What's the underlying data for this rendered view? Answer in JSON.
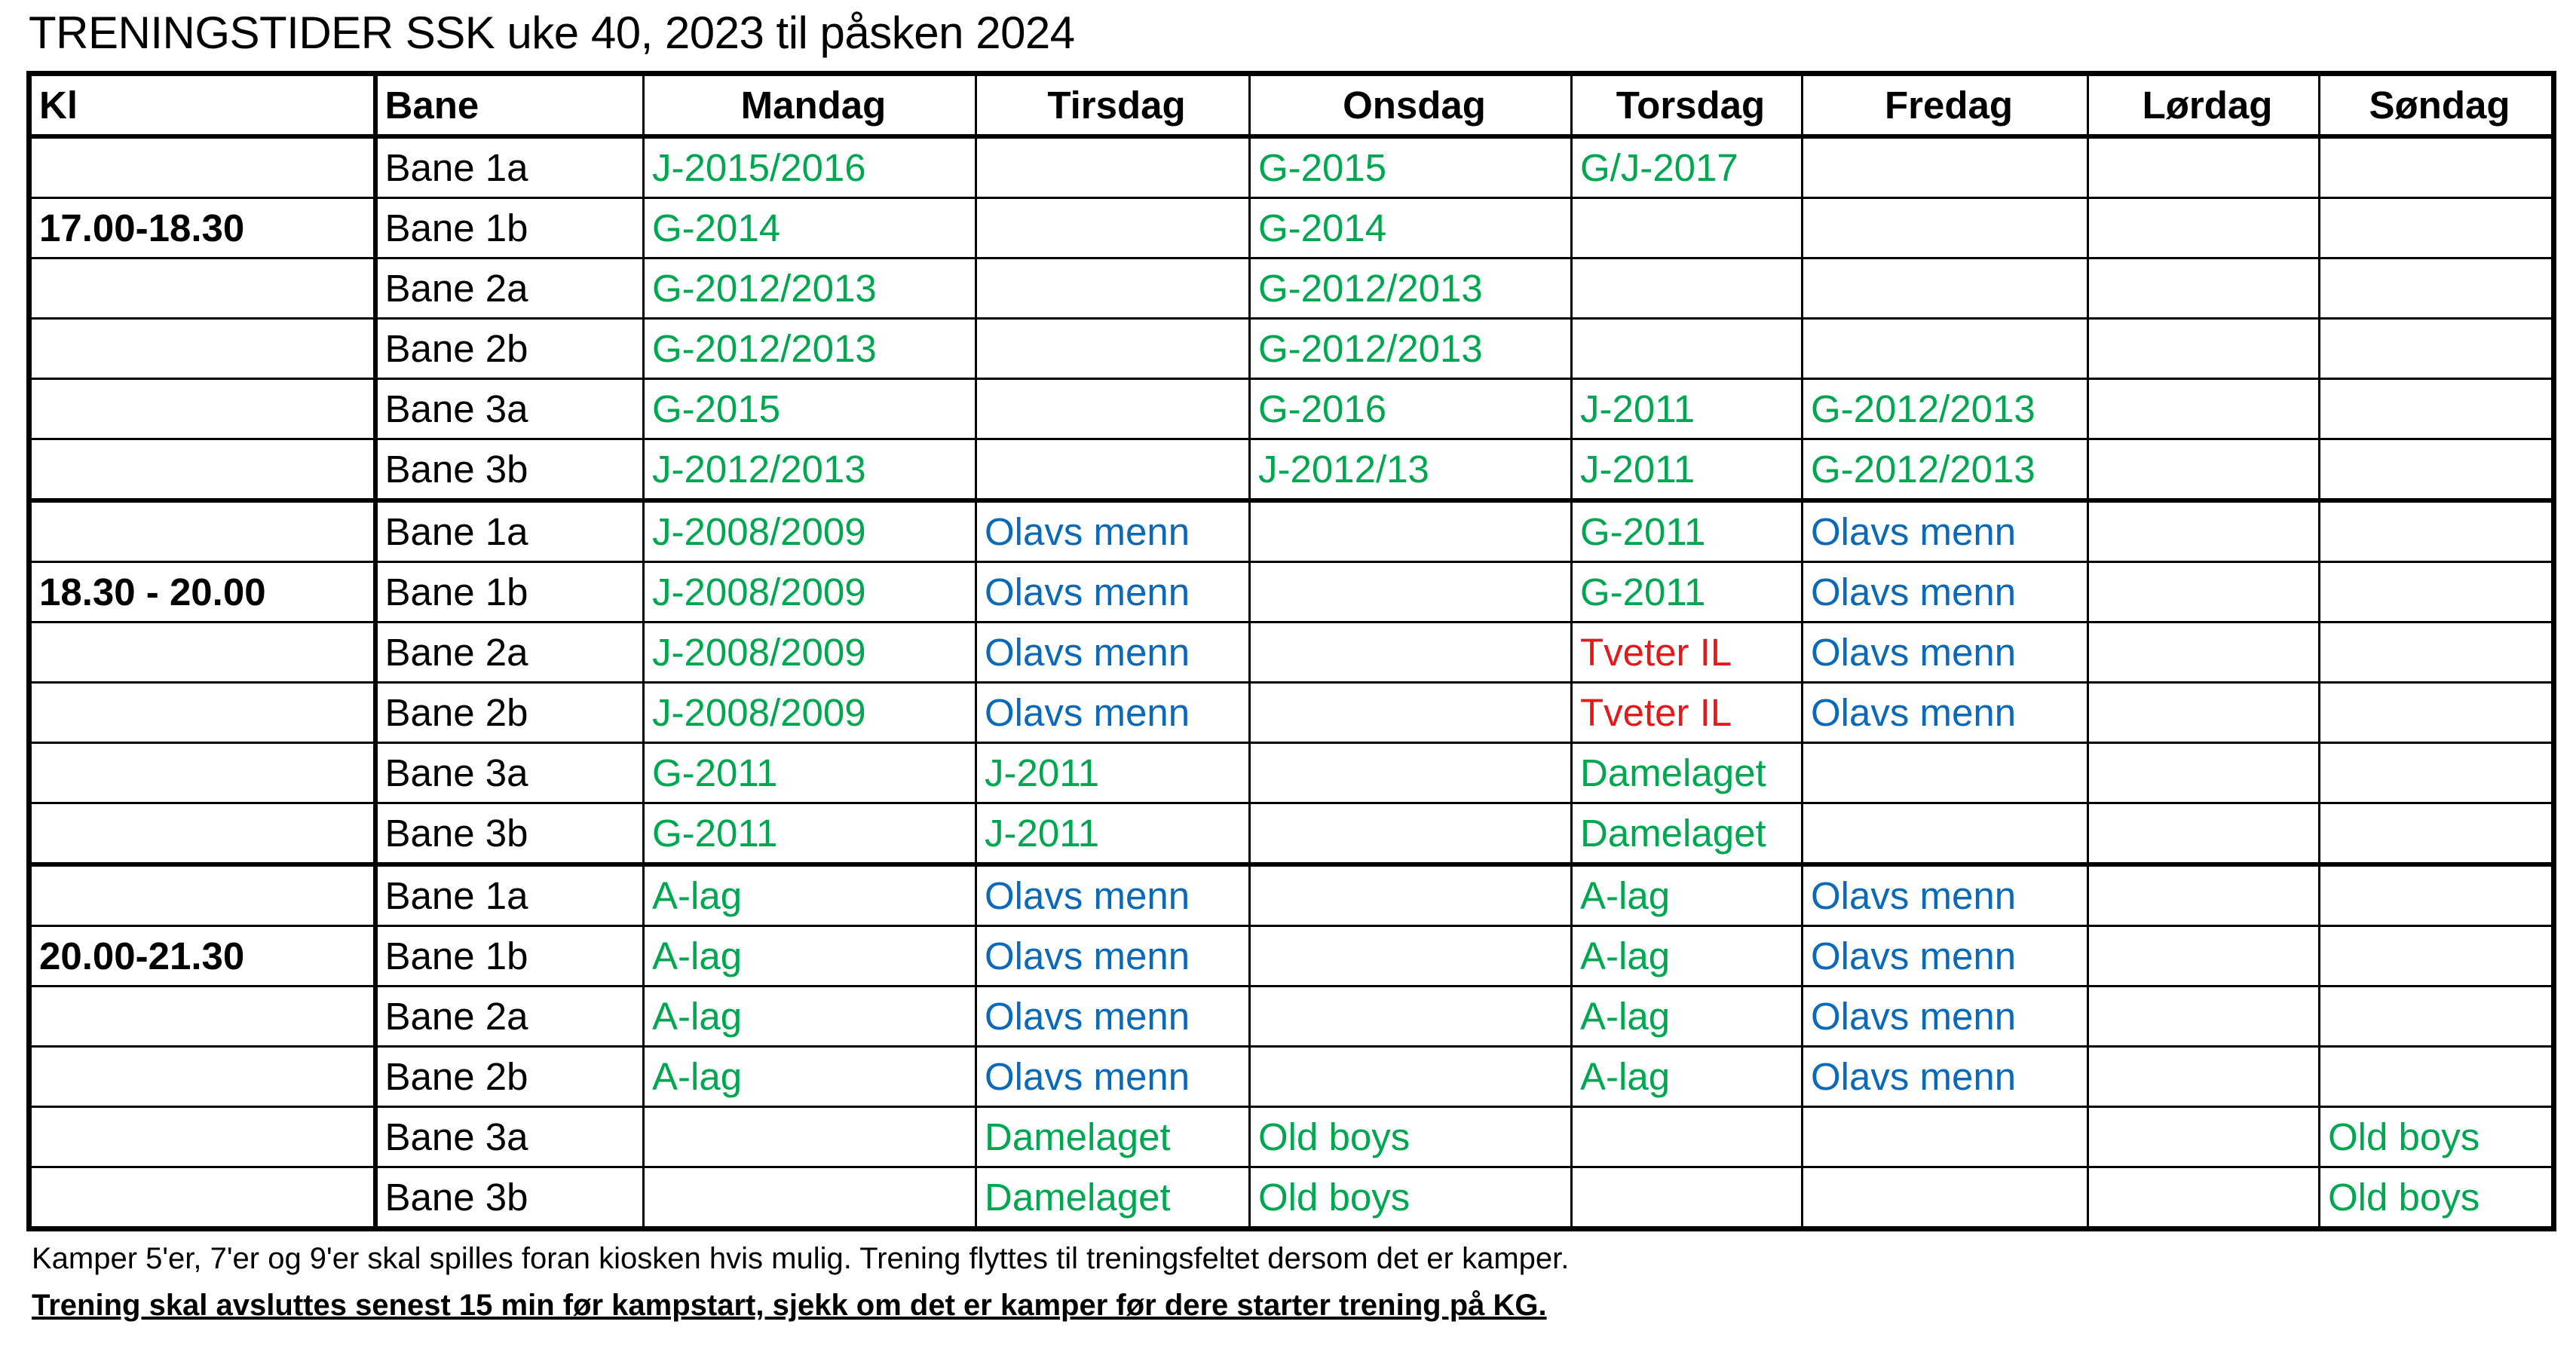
{
  "title": "TRENINGSTIDER SSK uke 40, 2023 til påsken 2024",
  "headers": [
    "Kl",
    "Bane",
    "Mandag",
    "Tirsdag",
    "Onsdag",
    "Torsdag",
    "Fredag",
    "Lørdag",
    "Søndag"
  ],
  "colors": {
    "green": "#00a650",
    "blue": "#0b6ab7",
    "red": "#e41a1a"
  },
  "blocks": [
    {
      "time": "17.00-18.30",
      "rows": [
        {
          "bane": "Bane 1a",
          "cells": [
            {
              "t": "J-2015/2016",
              "c": "green"
            },
            {
              "t": "",
              "c": ""
            },
            {
              "t": "G-2015",
              "c": "green"
            },
            {
              "t": "G/J-2017",
              "c": "green"
            },
            {
              "t": "",
              "c": ""
            },
            {
              "t": "",
              "c": ""
            },
            {
              "t": "",
              "c": ""
            }
          ]
        },
        {
          "bane": "Bane 1b",
          "cells": [
            {
              "t": "G-2014",
              "c": "green"
            },
            {
              "t": "",
              "c": ""
            },
            {
              "t": "G-2014",
              "c": "green"
            },
            {
              "t": "",
              "c": ""
            },
            {
              "t": "",
              "c": ""
            },
            {
              "t": "",
              "c": ""
            },
            {
              "t": "",
              "c": ""
            }
          ]
        },
        {
          "bane": "Bane 2a",
          "cells": [
            {
              "t": "G-2012/2013",
              "c": "green"
            },
            {
              "t": "",
              "c": ""
            },
            {
              "t": "G-2012/2013",
              "c": "green"
            },
            {
              "t": "",
              "c": ""
            },
            {
              "t": "",
              "c": ""
            },
            {
              "t": "",
              "c": ""
            },
            {
              "t": "",
              "c": ""
            }
          ]
        },
        {
          "bane": "Bane 2b",
          "cells": [
            {
              "t": "G-2012/2013",
              "c": "green"
            },
            {
              "t": "",
              "c": ""
            },
            {
              "t": "G-2012/2013",
              "c": "green"
            },
            {
              "t": "",
              "c": ""
            },
            {
              "t": "",
              "c": ""
            },
            {
              "t": "",
              "c": ""
            },
            {
              "t": "",
              "c": ""
            }
          ]
        },
        {
          "bane": "Bane 3a",
          "cells": [
            {
              "t": "G-2015",
              "c": "green"
            },
            {
              "t": "",
              "c": ""
            },
            {
              "t": "G-2016",
              "c": "green"
            },
            {
              "t": "J-2011",
              "c": "green"
            },
            {
              "t": "G-2012/2013",
              "c": "green"
            },
            {
              "t": "",
              "c": ""
            },
            {
              "t": "",
              "c": ""
            }
          ]
        },
        {
          "bane": "Bane 3b",
          "cells": [
            {
              "t": "J-2012/2013",
              "c": "green"
            },
            {
              "t": "",
              "c": ""
            },
            {
              "t": "J-2012/13",
              "c": "green"
            },
            {
              "t": "J-2011",
              "c": "green"
            },
            {
              "t": "G-2012/2013",
              "c": "green"
            },
            {
              "t": "",
              "c": ""
            },
            {
              "t": "",
              "c": ""
            }
          ]
        }
      ]
    },
    {
      "time": "18.30 - 20.00",
      "rows": [
        {
          "bane": "Bane 1a",
          "cells": [
            {
              "t": "J-2008/2009",
              "c": "green"
            },
            {
              "t": "Olavs menn",
              "c": "blue"
            },
            {
              "t": "",
              "c": ""
            },
            {
              "t": "G-2011",
              "c": "green"
            },
            {
              "t": "Olavs menn",
              "c": "blue"
            },
            {
              "t": "",
              "c": ""
            },
            {
              "t": "",
              "c": ""
            }
          ]
        },
        {
          "bane": "Bane 1b",
          "cells": [
            {
              "t": "J-2008/2009",
              "c": "green"
            },
            {
              "t": "Olavs menn",
              "c": "blue"
            },
            {
              "t": "",
              "c": ""
            },
            {
              "t": "G-2011",
              "c": "green"
            },
            {
              "t": "Olavs menn",
              "c": "blue"
            },
            {
              "t": "",
              "c": ""
            },
            {
              "t": "",
              "c": ""
            }
          ]
        },
        {
          "bane": "Bane 2a",
          "cells": [
            {
              "t": "J-2008/2009",
              "c": "green"
            },
            {
              "t": "Olavs menn",
              "c": "blue"
            },
            {
              "t": "",
              "c": ""
            },
            {
              "t": "Tveter IL",
              "c": "red"
            },
            {
              "t": "Olavs menn",
              "c": "blue"
            },
            {
              "t": "",
              "c": ""
            },
            {
              "t": "",
              "c": ""
            }
          ]
        },
        {
          "bane": "Bane 2b",
          "cells": [
            {
              "t": "J-2008/2009",
              "c": "green"
            },
            {
              "t": "Olavs menn",
              "c": "blue"
            },
            {
              "t": "",
              "c": ""
            },
            {
              "t": "Tveter IL",
              "c": "red"
            },
            {
              "t": "Olavs menn",
              "c": "blue"
            },
            {
              "t": "",
              "c": ""
            },
            {
              "t": "",
              "c": ""
            }
          ]
        },
        {
          "bane": "Bane 3a",
          "cells": [
            {
              "t": "G-2011",
              "c": "green"
            },
            {
              "t": "J-2011",
              "c": "green"
            },
            {
              "t": "",
              "c": ""
            },
            {
              "t": "Damelaget",
              "c": "green"
            },
            {
              "t": "",
              "c": ""
            },
            {
              "t": "",
              "c": ""
            },
            {
              "t": "",
              "c": ""
            }
          ]
        },
        {
          "bane": "Bane 3b",
          "cells": [
            {
              "t": "G-2011",
              "c": "green"
            },
            {
              "t": "J-2011",
              "c": "green"
            },
            {
              "t": "",
              "c": ""
            },
            {
              "t": "Damelaget",
              "c": "green"
            },
            {
              "t": "",
              "c": ""
            },
            {
              "t": "",
              "c": ""
            },
            {
              "t": "",
              "c": ""
            }
          ]
        }
      ]
    },
    {
      "time": "20.00-21.30",
      "rows": [
        {
          "bane": "Bane 1a",
          "cells": [
            {
              "t": "A-lag",
              "c": "green"
            },
            {
              "t": "Olavs menn",
              "c": "blue"
            },
            {
              "t": "",
              "c": ""
            },
            {
              "t": "A-lag",
              "c": "green"
            },
            {
              "t": "Olavs menn",
              "c": "blue"
            },
            {
              "t": "",
              "c": ""
            },
            {
              "t": "",
              "c": ""
            }
          ]
        },
        {
          "bane": "Bane 1b",
          "cells": [
            {
              "t": "A-lag",
              "c": "green"
            },
            {
              "t": "Olavs menn",
              "c": "blue"
            },
            {
              "t": "",
              "c": ""
            },
            {
              "t": "A-lag",
              "c": "green"
            },
            {
              "t": "Olavs menn",
              "c": "blue"
            },
            {
              "t": "",
              "c": ""
            },
            {
              "t": "",
              "c": ""
            }
          ]
        },
        {
          "bane": "Bane 2a",
          "cells": [
            {
              "t": "A-lag",
              "c": "green"
            },
            {
              "t": "Olavs menn",
              "c": "blue"
            },
            {
              "t": "",
              "c": ""
            },
            {
              "t": "A-lag",
              "c": "green"
            },
            {
              "t": "Olavs menn",
              "c": "blue"
            },
            {
              "t": "",
              "c": ""
            },
            {
              "t": "",
              "c": ""
            }
          ]
        },
        {
          "bane": "Bane 2b",
          "cells": [
            {
              "t": "A-lag",
              "c": "green"
            },
            {
              "t": "Olavs menn",
              "c": "blue"
            },
            {
              "t": "",
              "c": ""
            },
            {
              "t": "A-lag",
              "c": "green"
            },
            {
              "t": "Olavs menn",
              "c": "blue"
            },
            {
              "t": "",
              "c": ""
            },
            {
              "t": "",
              "c": ""
            }
          ]
        },
        {
          "bane": "Bane 3a",
          "cells": [
            {
              "t": "",
              "c": ""
            },
            {
              "t": "Damelaget",
              "c": "green"
            },
            {
              "t": "Old boys",
              "c": "green"
            },
            {
              "t": "",
              "c": ""
            },
            {
              "t": "",
              "c": ""
            },
            {
              "t": "",
              "c": ""
            },
            {
              "t": "Old boys",
              "c": "green"
            }
          ]
        },
        {
          "bane": "Bane 3b",
          "cells": [
            {
              "t": "",
              "c": ""
            },
            {
              "t": "Damelaget",
              "c": "green"
            },
            {
              "t": "Old boys",
              "c": "green"
            },
            {
              "t": "",
              "c": ""
            },
            {
              "t": "",
              "c": ""
            },
            {
              "t": "",
              "c": ""
            },
            {
              "t": "Old boys",
              "c": "green"
            }
          ]
        }
      ]
    }
  ],
  "note_line1": "Kamper 5'er, 7'er og 9'er skal spilles foran kiosken hvis mulig. Trening flyttes til treningsfeltet dersom det er kamper.",
  "note_line2": "Trening skal avsluttes senest 15 min før kampstart, sjekk om det er kamper før dere starter trening på KG."
}
